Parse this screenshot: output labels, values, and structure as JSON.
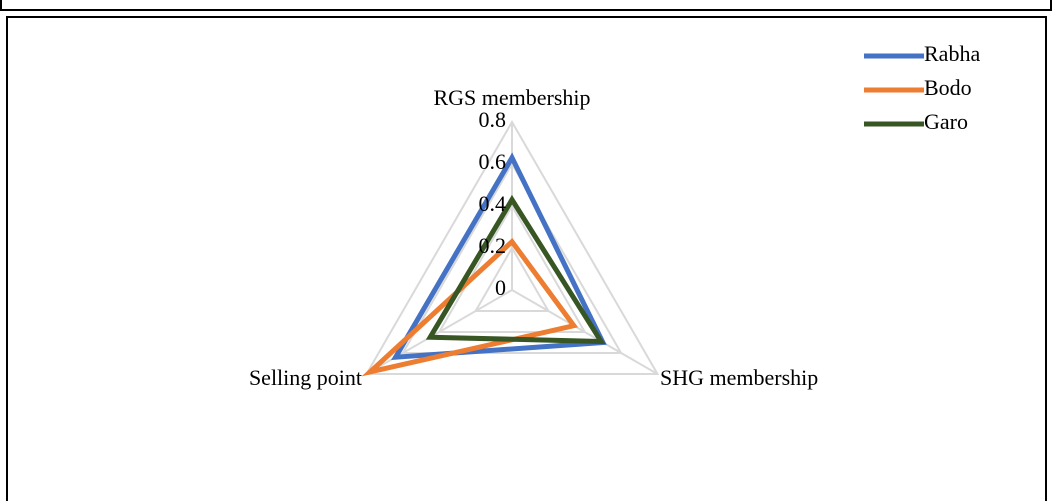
{
  "chart_data": {
    "type": "radar",
    "categories": [
      "RGS membership",
      "SHG membership",
      "Selling point"
    ],
    "series": [
      {
        "name": "Rabha",
        "color": "#4472c4",
        "values": [
          0.63,
          0.5,
          0.64
        ]
      },
      {
        "name": "Bodo",
        "color": "#ed7d31",
        "values": [
          0.23,
          0.34,
          0.78
        ]
      },
      {
        "name": "Garo",
        "color": "#375623",
        "values": [
          0.43,
          0.49,
          0.45
        ]
      }
    ],
    "ylim": [
      0,
      0.8
    ],
    "yticks": [
      0,
      0.2,
      0.4,
      0.6,
      0.8
    ],
    "grid": true,
    "legend": "top-right"
  }
}
